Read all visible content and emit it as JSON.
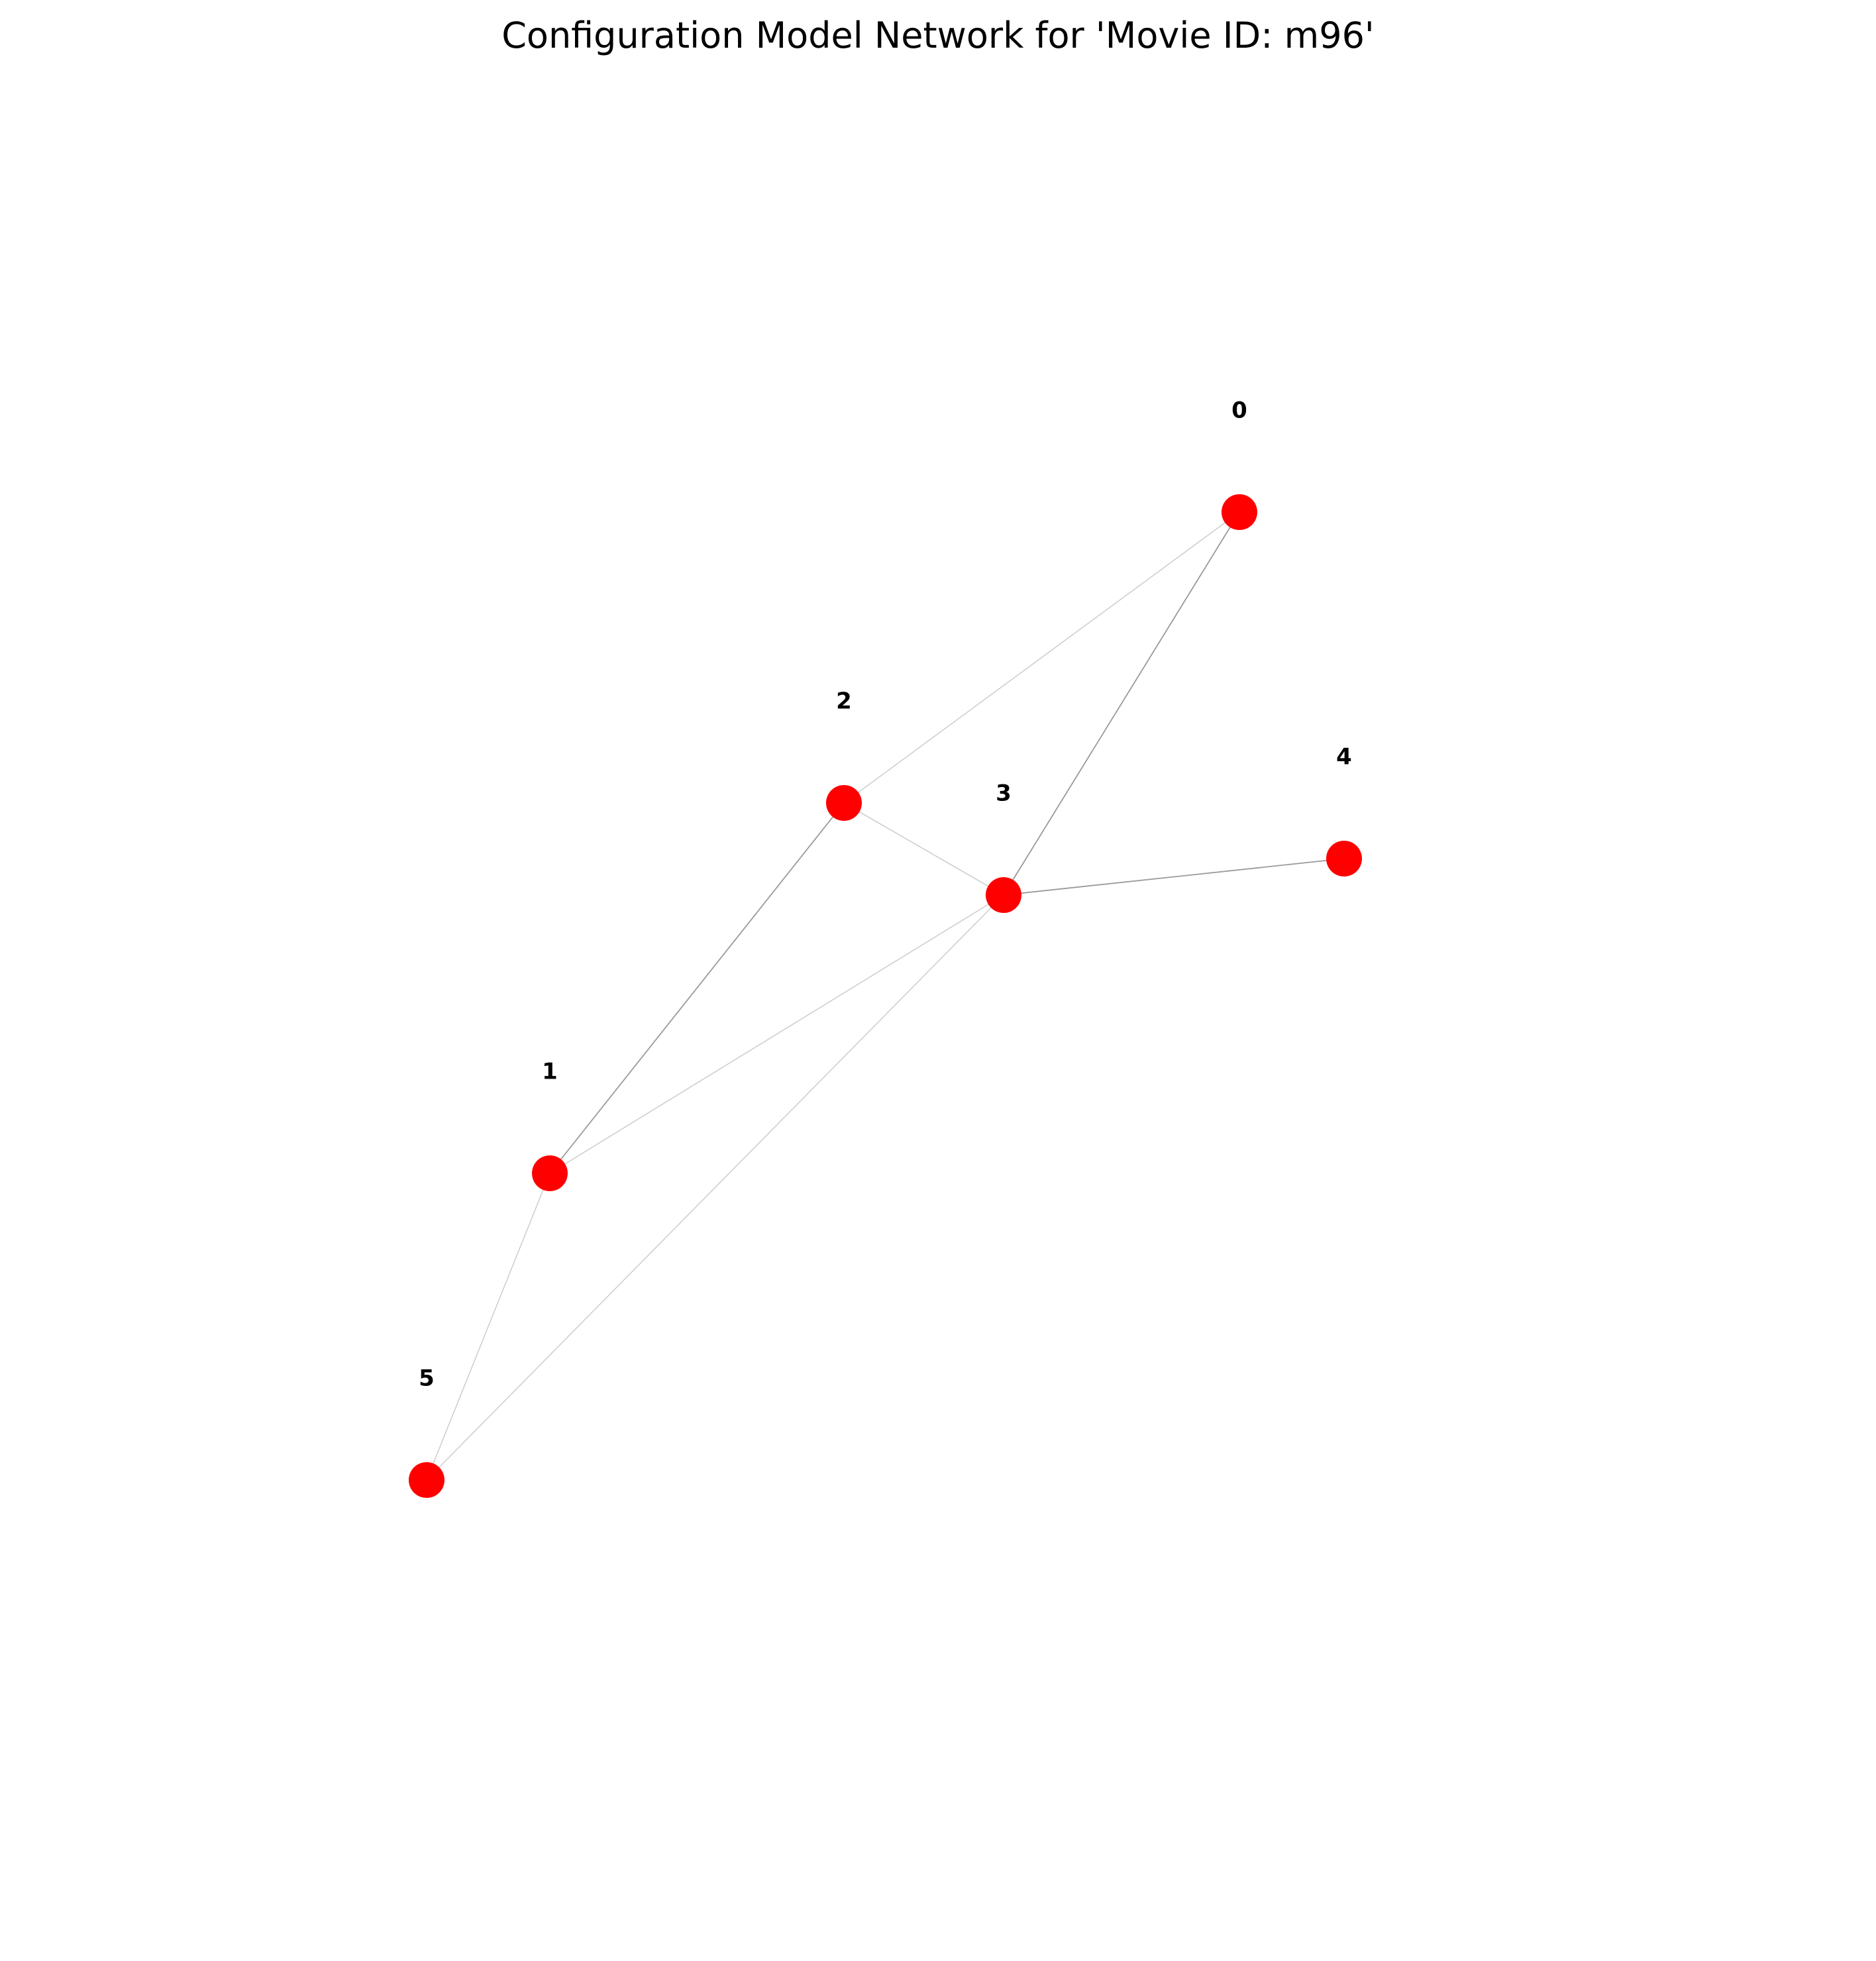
{
  "title": "Configuration Model Network for 'Movie ID: m96'",
  "node_color": "#ff0000",
  "label_color": "#000000",
  "nodes": [
    {
      "id": "0",
      "label": "0"
    },
    {
      "id": "1",
      "label": "1"
    },
    {
      "id": "2",
      "label": "2"
    },
    {
      "id": "3",
      "label": "3"
    },
    {
      "id": "4",
      "label": "4"
    },
    {
      "id": "5",
      "label": "5"
    }
  ],
  "edges": [
    {
      "source": "0",
      "target": "2",
      "multiplicity": 1
    },
    {
      "source": "0",
      "target": "3",
      "multiplicity": 2
    },
    {
      "source": "2",
      "target": "3",
      "multiplicity": 1
    },
    {
      "source": "2",
      "target": "1",
      "multiplicity": 2
    },
    {
      "source": "3",
      "target": "4",
      "multiplicity": 2
    },
    {
      "source": "3",
      "target": "1",
      "multiplicity": 1
    },
    {
      "source": "3",
      "target": "5",
      "multiplicity": 1
    },
    {
      "source": "1",
      "target": "5",
      "multiplicity": 1
    }
  ]
}
